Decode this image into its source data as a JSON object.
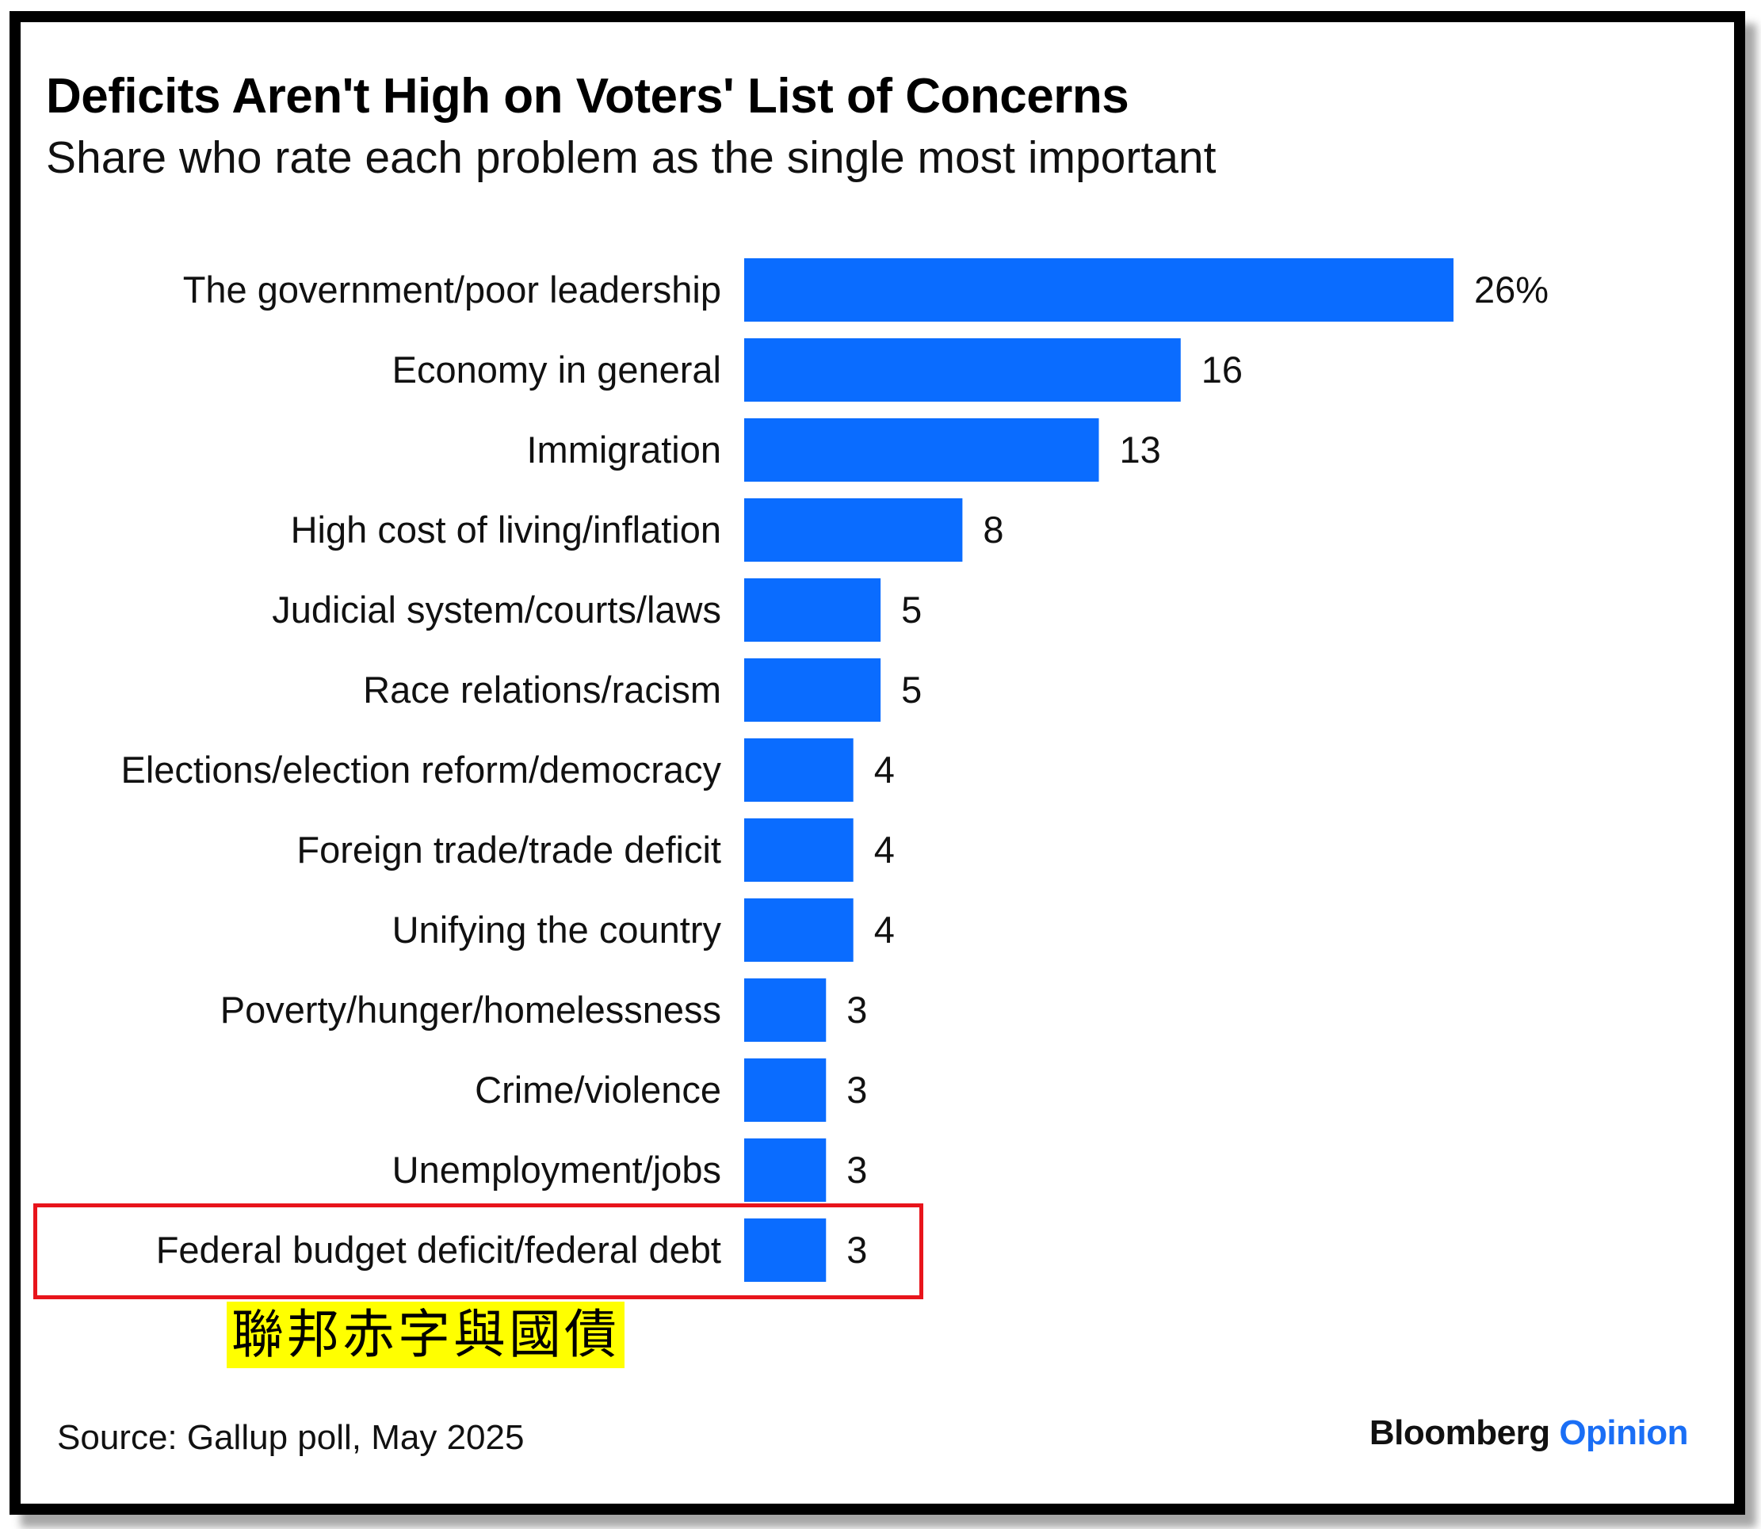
{
  "brand": {
    "name": "Bloomberg",
    "section": "Opinion",
    "accent_color": "#1a6ef5"
  },
  "source": "Source: Gallup poll, May 2025",
  "highlight": {
    "category": "Federal budget deficit/federal debt",
    "box_color": "#e8141b",
    "annotation": "聯邦赤字與國債",
    "annotation_bg": "#ffff00"
  },
  "chart_data": {
    "type": "bar",
    "orientation": "horizontal",
    "title": "Deficits Aren't High on Voters' List of Concerns",
    "subtitle": "Share who rate each problem as the single most important",
    "bar_color": "#0a6cff",
    "unit_suffix_first_label": "%",
    "categories": [
      "The government/poor leadership",
      "Economy in general",
      "Immigration",
      "High cost of living/inflation",
      "Judicial system/courts/laws",
      "Race relations/racism",
      "Elections/election reform/democracy",
      "Foreign trade/trade deficit",
      "Unifying the country",
      "Poverty/hunger/homelessness",
      "Crime/violence",
      "Unemployment/jobs",
      "Federal budget deficit/federal debt"
    ],
    "values": [
      26,
      16,
      13,
      8,
      5,
      5,
      4,
      4,
      4,
      3,
      3,
      3,
      3
    ],
    "value_labels": [
      "26%",
      "16",
      "13",
      "8",
      "5",
      "5",
      "4",
      "4",
      "4",
      "3",
      "3",
      "3",
      "3"
    ],
    "xlim": [
      0,
      26
    ],
    "grid": false,
    "legend": "none"
  }
}
